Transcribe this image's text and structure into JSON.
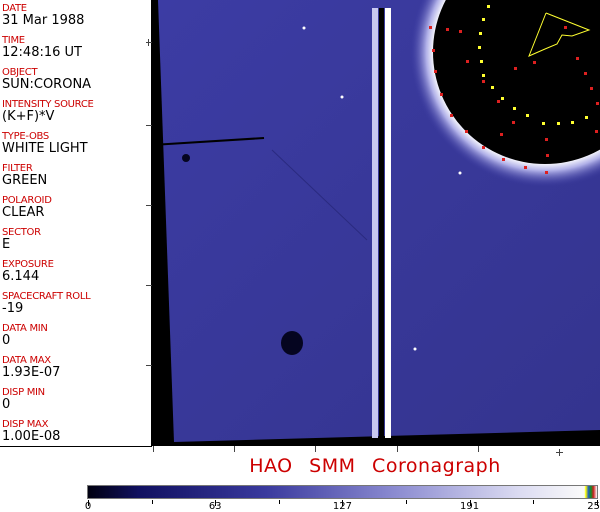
{
  "fields": [
    {
      "label": "DATE",
      "value": "31 Mar 1988"
    },
    {
      "label": "TIME",
      "value": "12:48:16 UT"
    },
    {
      "label": "OBJECT",
      "value": "SUN:CORONA"
    },
    {
      "label": "INTENSITY SOURCE",
      "value": "(K+F)*V"
    },
    {
      "label": "TYPE-OBS",
      "value": "WHITE LIGHT"
    },
    {
      "label": "FILTER",
      "value": "GREEN"
    },
    {
      "label": "POLAROID",
      "value": "CLEAR"
    },
    {
      "label": "SECTOR",
      "value": "E"
    },
    {
      "label": "EXPOSURE",
      "value": "6.144"
    },
    {
      "label": "SPACECRAFT ROLL",
      "value": "-19"
    },
    {
      "label": "DATA MIN",
      "value": "0"
    },
    {
      "label": "DATA MAX",
      "value": "1.93E-07"
    },
    {
      "label": "DISP MIN",
      "value": "0"
    },
    {
      "label": "DISP MAX",
      "value": "1.00E-08"
    }
  ],
  "title": "HAO SMM Coronagraph",
  "colorbar": {
    "ticks": [
      "0",
      "63",
      "127",
      "191",
      "255"
    ],
    "min": 0,
    "max": 255
  },
  "colors": {
    "label": "#cc0000",
    "field": "#3a3a9a",
    "marker_red": "#dd2020",
    "marker_yellow": "#ffff30"
  }
}
